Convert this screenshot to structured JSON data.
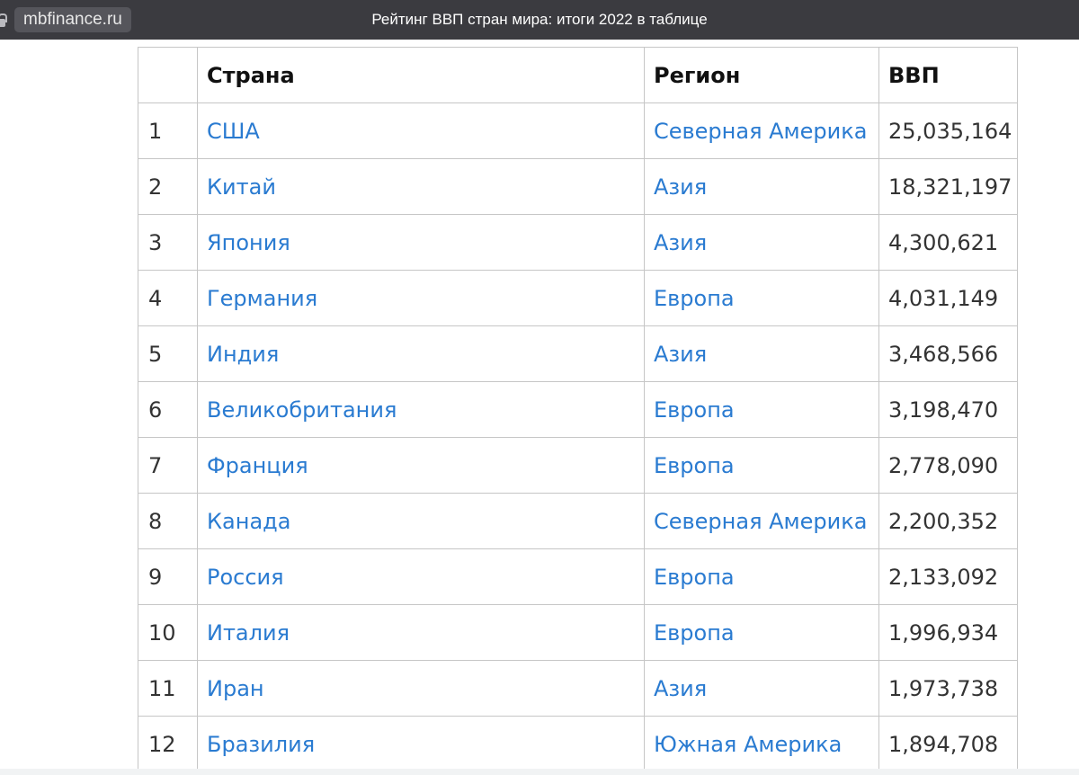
{
  "window": {
    "site": "mbfinance.ru",
    "title": "Рейтинг ВВП стран мира: итоги 2022 в таблице"
  },
  "icons": {
    "site_lock": "lock-icon"
  },
  "colors": {
    "titlebar_bg": "#3b3b40",
    "link": "#2a7bd1",
    "border": "#c6c6c6",
    "text": "#333333"
  },
  "table": {
    "headers": [
      "",
      "Страна",
      "Регион",
      "ВВП"
    ],
    "rows": [
      {
        "rank": "1",
        "country": "США",
        "region": "Северная Америка",
        "gdp": "25,035,164"
      },
      {
        "rank": "2",
        "country": "Китай",
        "region": "Азия",
        "gdp": "18,321,197"
      },
      {
        "rank": "3",
        "country": "Япония",
        "region": "Азия",
        "gdp": "4,300,621"
      },
      {
        "rank": "4",
        "country": "Германия",
        "region": "Европа",
        "gdp": "4,031,149"
      },
      {
        "rank": "5",
        "country": "Индия",
        "region": "Азия",
        "gdp": "3,468,566"
      },
      {
        "rank": "6",
        "country": "Великобритания",
        "region": "Европа",
        "gdp": "3,198,470"
      },
      {
        "rank": "7",
        "country": "Франция",
        "region": "Европа",
        "gdp": "2,778,090"
      },
      {
        "rank": "8",
        "country": "Канада",
        "region": "Северная Америка",
        "gdp": "2,200,352"
      },
      {
        "rank": "9",
        "country": "Россия",
        "region": "Европа",
        "gdp": "2,133,092"
      },
      {
        "rank": "10",
        "country": "Италия",
        "region": "Европа",
        "gdp": "1,996,934"
      },
      {
        "rank": "11",
        "country": "Иран",
        "region": "Азия",
        "gdp": "1,973,738"
      },
      {
        "rank": "12",
        "country": "Бразилия",
        "region": "Южная Америка",
        "gdp": "1,894,708"
      }
    ]
  }
}
